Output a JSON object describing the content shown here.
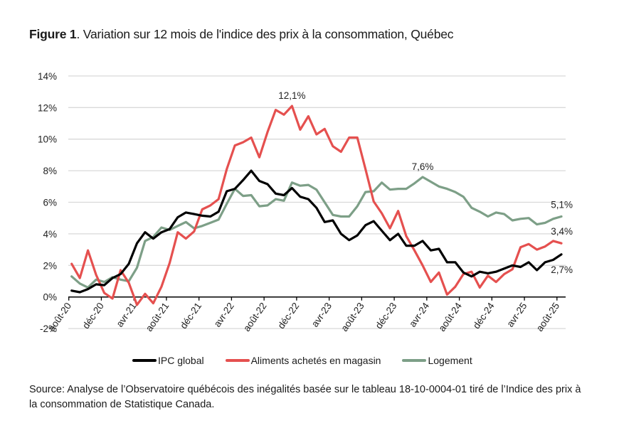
{
  "title": {
    "figure_label": "Figure 1",
    "text": ". Variation sur 12 mois de l'indice des prix à la consommation, Québec"
  },
  "chart_data": {
    "type": "line",
    "title": "Variation sur 12 mois de l'indice des prix à la consommation, Québec",
    "xlabel": "",
    "ylabel": "",
    "ylim": [
      -2,
      14
    ],
    "yticks": [
      -2,
      0,
      2,
      4,
      6,
      8,
      10,
      12,
      14
    ],
    "ytick_labels": [
      "-2%",
      "0%",
      "2%",
      "4%",
      "6%",
      "8%",
      "10%",
      "12%",
      "14%"
    ],
    "grid": true,
    "legend_position": "bottom",
    "x": [
      "août-20",
      "sept-20",
      "oct-20",
      "nov-20",
      "déc-20",
      "janv-21",
      "févr-21",
      "mars-21",
      "avr-21",
      "mai-21",
      "juin-21",
      "juil-21",
      "août-21",
      "sept-21",
      "oct-21",
      "nov-21",
      "déc-21",
      "janv-22",
      "févr-22",
      "mars-22",
      "avr-22",
      "mai-22",
      "juin-22",
      "juil-22",
      "août-22",
      "sept-22",
      "oct-22",
      "nov-22",
      "déc-22",
      "janv-23",
      "févr-23",
      "mars-23",
      "avr-23",
      "mai-23",
      "juin-23",
      "juil-23",
      "août-23",
      "sept-23",
      "oct-23",
      "nov-23",
      "déc-23",
      "janv-24",
      "févr-24",
      "mars-24",
      "avr-24",
      "mai-24",
      "juin-24",
      "juil-24",
      "août-24",
      "sept-24",
      "oct-24",
      "nov-24",
      "déc-24",
      "janv-25",
      "févr-25",
      "mars-25",
      "avr-25",
      "mai-25",
      "juin-25",
      "juil-25",
      "août-25"
    ],
    "xtick_labels": [
      "août-20",
      "déc-20",
      "avr-21",
      "août-21",
      "déc-21",
      "avr-22",
      "août-22",
      "déc-22",
      "avr-23",
      "août-23",
      "déc-23",
      "avr-24",
      "août-24",
      "déc-24",
      "avr-25",
      "août-25"
    ],
    "xtick_every": 4,
    "series": [
      {
        "name": "IPC global",
        "color": "#000000",
        "values": [
          0.4,
          0.3,
          0.5,
          0.8,
          0.75,
          1.2,
          1.45,
          2.1,
          3.4,
          4.1,
          3.7,
          4.1,
          4.3,
          5.05,
          5.35,
          5.25,
          5.15,
          5.1,
          5.4,
          6.7,
          6.85,
          7.4,
          8.0,
          7.35,
          7.15,
          6.55,
          6.45,
          6.9,
          6.35,
          6.2,
          5.65,
          4.75,
          4.85,
          4.0,
          3.6,
          3.9,
          4.55,
          4.8,
          4.2,
          3.6,
          4.0,
          3.25,
          3.25,
          3.55,
          2.95,
          3.05,
          2.2,
          2.2,
          1.55,
          1.3,
          1.6,
          1.5,
          1.6,
          1.8,
          2.0,
          1.9,
          2.2,
          1.7,
          2.2,
          2.35,
          2.7
        ]
      },
      {
        "name": "Aliments achetés en magasin",
        "color": "#e5504f",
        "values": [
          2.1,
          1.2,
          2.95,
          1.4,
          0.25,
          -0.1,
          1.7,
          0.9,
          -0.5,
          0.2,
          -0.4,
          0.65,
          2.15,
          4.1,
          3.7,
          4.15,
          5.55,
          5.8,
          6.2,
          8.1,
          9.6,
          9.8,
          10.1,
          8.85,
          10.45,
          11.85,
          11.55,
          12.1,
          10.6,
          11.45,
          10.3,
          10.65,
          9.55,
          9.2,
          10.1,
          10.1,
          8.1,
          6.05,
          5.3,
          4.35,
          5.45,
          3.85,
          2.95,
          2.0,
          0.95,
          1.55,
          0.15,
          0.65,
          1.45,
          1.6,
          0.6,
          1.35,
          0.95,
          1.45,
          1.75,
          3.15,
          3.35,
          3.0,
          3.2,
          3.55,
          3.4
        ]
      },
      {
        "name": "Logement",
        "color": "#7d9f87",
        "values": [
          1.3,
          0.85,
          0.6,
          1.1,
          0.95,
          1.25,
          1.1,
          1.0,
          1.85,
          3.55,
          3.8,
          4.4,
          4.25,
          4.5,
          4.75,
          4.35,
          4.5,
          4.7,
          4.9,
          5.9,
          6.85,
          6.4,
          6.45,
          5.75,
          5.8,
          6.2,
          6.1,
          7.25,
          7.05,
          7.1,
          6.8,
          6.0,
          5.2,
          5.1,
          5.1,
          5.75,
          6.65,
          6.7,
          7.25,
          6.8,
          6.85,
          6.85,
          7.2,
          7.6,
          7.3,
          7.0,
          6.85,
          6.65,
          6.35,
          5.65,
          5.4,
          5.1,
          5.35,
          5.25,
          4.85,
          4.95,
          5.0,
          4.6,
          4.7,
          4.95,
          5.1
        ]
      }
    ],
    "annotations": [
      {
        "text": "12,1%",
        "series": "Aliments achetés en magasin",
        "x": "nov-22",
        "value": 12.1,
        "position": "above"
      },
      {
        "text": "7,6%",
        "series": "Logement",
        "x": "mars-24",
        "value": 7.6,
        "position": "above"
      },
      {
        "text": "5,1%",
        "series": "Logement",
        "x": "août-25",
        "value": 5.1,
        "position": "above"
      },
      {
        "text": "3,4%",
        "series": "Aliments achetés en magasin",
        "x": "août-25",
        "value": 3.4,
        "position": "above"
      },
      {
        "text": "2,7%",
        "series": "IPC global",
        "x": "août-25",
        "value": 2.7,
        "position": "below"
      }
    ]
  },
  "legend": [
    {
      "label": "IPC global",
      "color": "#000000"
    },
    {
      "label": "Aliments achetés en magasin",
      "color": "#e5504f"
    },
    {
      "label": "Logement",
      "color": "#7d9f87"
    }
  ],
  "source": "Source: Analyse de l’Observatoire québécois des inégalités basée sur le tableau 18-10-0004-01 tiré de l’Indice des prix à la consommation de Statistique Canada."
}
